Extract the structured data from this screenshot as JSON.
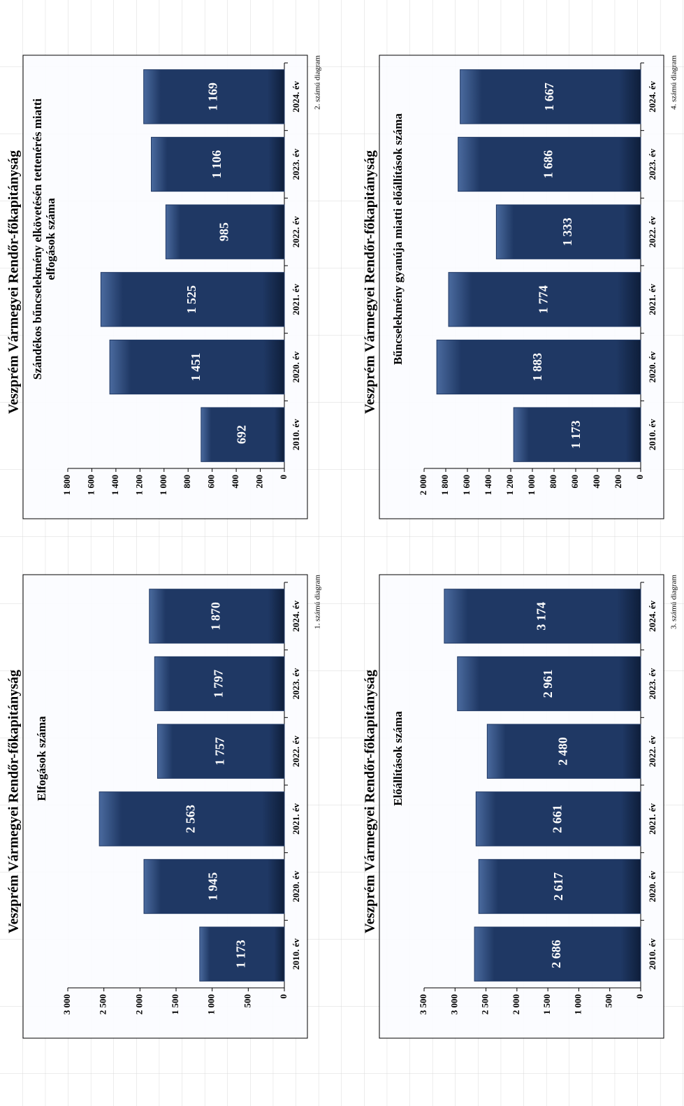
{
  "chart_data": [
    {
      "type": "bar",
      "title": "Veszprém Vármegyei Rendőr-főkapitányság",
      "subtitle": [
        "Elfogások száma"
      ],
      "note": "1. számú diagram",
      "categories": [
        "2010. év",
        "2020. év",
        "2021. év",
        "2022. év",
        "2023. év",
        "2024. év"
      ],
      "values": [
        1173,
        1945,
        2563,
        1757,
        1797,
        1870
      ],
      "value_labels": [
        "1 173",
        "1 945",
        "2 563",
        "1 757",
        "1 797",
        "1 870"
      ],
      "color": "#1f3864",
      "ylim": [
        0,
        3000
      ],
      "yticks": [
        0,
        500,
        {
          "value": 1000,
          "label": "1 000"
        },
        {
          "value": 1500,
          "label": "1 500"
        },
        {
          "value": 2000,
          "label": "2 000"
        },
        {
          "value": 2500,
          "label": "2 500"
        },
        {
          "value": 3000,
          "label": "3 000"
        }
      ]
    },
    {
      "type": "bar",
      "title": "Veszprém Vármegyei Rendőr-főkapitányság",
      "subtitle": [
        "Szándékos bűncselekmény elkövetésén tettenérés miatti",
        "elfogások száma"
      ],
      "note": "2. számú diagram",
      "categories": [
        "2010. év",
        "2020. év",
        "2021. év",
        "2022. év",
        "2023. év",
        "2024. év"
      ],
      "values": [
        692,
        1451,
        1525,
        985,
        1106,
        1169
      ],
      "value_labels": [
        "692",
        "1 451",
        "1 525",
        "985",
        "1 106",
        "1 169"
      ],
      "color": "#1f3864",
      "ylim": [
        0,
        1800
      ],
      "yticks": [
        0,
        200,
        400,
        600,
        800,
        {
          "value": 1000,
          "label": "1 000"
        },
        {
          "value": 1200,
          "label": "1 200"
        },
        {
          "value": 1400,
          "label": "1 400"
        },
        {
          "value": 1600,
          "label": "1 600"
        },
        {
          "value": 1800,
          "label": "1 800"
        }
      ]
    },
    {
      "type": "bar",
      "title": "Veszprém Vármegyei Rendőr-főkapitányság",
      "subtitle": [
        "Előállítások száma"
      ],
      "note": "3. számú diagram",
      "categories": [
        "2010. év",
        "2020. év",
        "2021. év",
        "2022. év",
        "2023. év",
        "2024. év"
      ],
      "values": [
        2686,
        2617,
        2661,
        2480,
        2961,
        3174
      ],
      "value_labels": [
        "2 686",
        "2 617",
        "2 661",
        "2 480",
        "2 961",
        "3 174"
      ],
      "color": "#1f3864",
      "ylim": [
        0,
        3500
      ],
      "yticks": [
        0,
        500,
        {
          "value": 1000,
          "label": "1 000"
        },
        {
          "value": 1500,
          "label": "1 500"
        },
        {
          "value": 2000,
          "label": "2 000"
        },
        {
          "value": 2500,
          "label": "2 500"
        },
        {
          "value": 3000,
          "label": "3 000"
        },
        {
          "value": 3500,
          "label": "3 500"
        }
      ]
    },
    {
      "type": "bar",
      "title": "Veszprém Vármegyei Rendőr-főkapitányság",
      "subtitle": [
        "Bűncselekmény gyanúja miatti előállítások száma"
      ],
      "note": "4. számú diagram",
      "categories": [
        "2010. év",
        "2020. év",
        "2021. év",
        "2022. év",
        "2023. év",
        "2024. év"
      ],
      "values": [
        1173,
        1883,
        1774,
        1333,
        1686,
        1667
      ],
      "value_labels": [
        "1 173",
        "1 883",
        "1 774",
        "1 333",
        "1 686",
        "1 667"
      ],
      "color": "#1f3864",
      "ylim": [
        0,
        2000
      ],
      "yticks": [
        0,
        200,
        400,
        600,
        800,
        {
          "value": 1000,
          "label": "1 000"
        },
        {
          "value": 1200,
          "label": "1 200"
        },
        {
          "value": 1400,
          "label": "1 400"
        },
        {
          "value": 1600,
          "label": "1 600"
        },
        {
          "value": 1800,
          "label": "1 800"
        },
        {
          "value": 2000,
          "label": "2 000"
        }
      ]
    }
  ]
}
